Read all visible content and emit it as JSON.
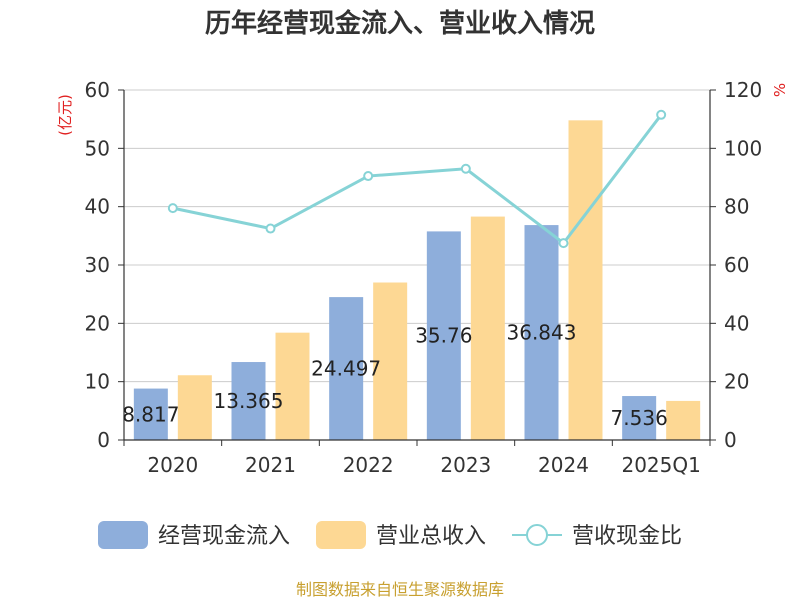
{
  "chart_data": {
    "type": "bar",
    "title": "历年经营现金流入、营业收入情况",
    "left_unit": "(亿元)",
    "right_unit": "%",
    "categories": [
      "2020",
      "2021",
      "2022",
      "2023",
      "2024",
      "2025Q1"
    ],
    "ylim_left": [
      0,
      60
    ],
    "yticks_left": [
      0,
      10,
      20,
      30,
      40,
      50,
      60
    ],
    "ylim_right": [
      0,
      120
    ],
    "yticks_right": [
      0,
      20,
      40,
      60,
      80,
      100,
      120
    ],
    "series": [
      {
        "name": "经营现金流入",
        "type": "bar",
        "axis": "left",
        "color": "#8eaedb",
        "values": [
          8.817,
          13.365,
          24.497,
          35.76,
          36.843,
          7.536
        ],
        "labels": [
          "8.817",
          "13.365",
          "24.497",
          "35.76",
          "36.843",
          "7.536"
        ]
      },
      {
        "name": "营业总收入",
        "type": "bar",
        "axis": "left",
        "color": "#fdd894",
        "values": [
          11.1,
          18.4,
          27.0,
          38.3,
          54.8,
          6.7
        ]
      },
      {
        "name": "营收现金比",
        "type": "line",
        "axis": "right",
        "color": "#86d3d6",
        "values": [
          79.5,
          72.5,
          90.5,
          93.0,
          67.5,
          111.5
        ]
      }
    ],
    "legend_position": "bottom",
    "grid": true,
    "source": "制图数据来自恒生聚源数据库"
  }
}
